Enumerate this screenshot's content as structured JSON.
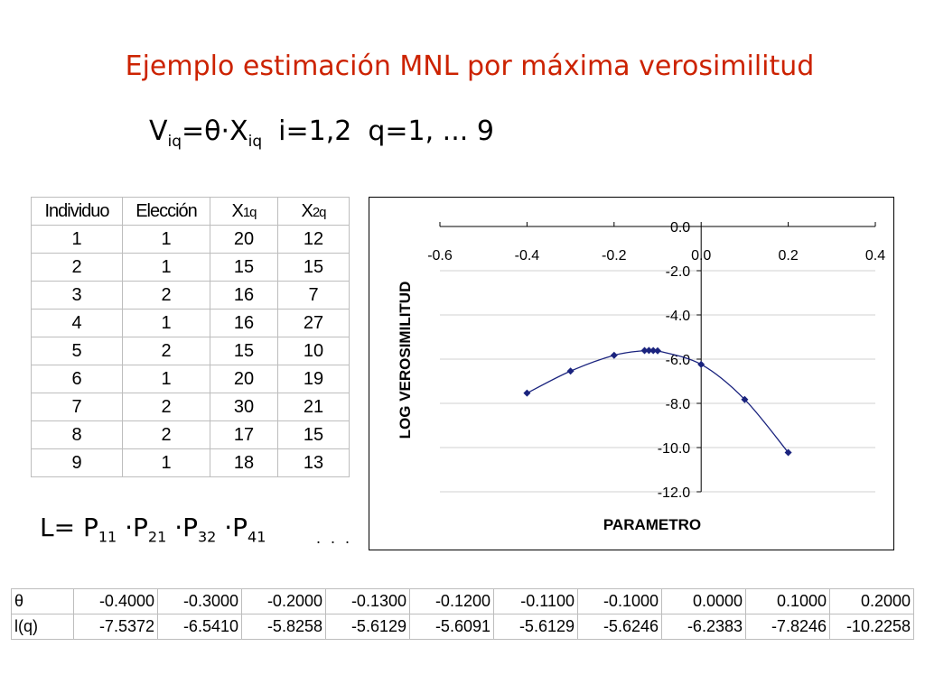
{
  "title": "Ejemplo estimación MNL por máxima verosimilitud",
  "formula": {
    "v": "V",
    "v_sub": "iq",
    "eq": "=θ·X",
    "x_sub": "iq",
    "i_range": "i=1,2",
    "q_range": "q=1, ... 9"
  },
  "table": {
    "headers": [
      "Individuo",
      "Elección",
      "X",
      "X"
    ],
    "header_subs": [
      "1q",
      "2q"
    ],
    "rows": [
      [
        "1",
        "1",
        "20",
        "12"
      ],
      [
        "2",
        "1",
        "15",
        "15"
      ],
      [
        "3",
        "2",
        "16",
        "7"
      ],
      [
        "4",
        "1",
        "16",
        "27"
      ],
      [
        "5",
        "2",
        "15",
        "10"
      ],
      [
        "6",
        "1",
        "20",
        "19"
      ],
      [
        "7",
        "2",
        "30",
        "21"
      ],
      [
        "8",
        "2",
        "17",
        "15"
      ],
      [
        "9",
        "1",
        "18",
        "13"
      ]
    ]
  },
  "likelihood": {
    "prefix": "L=",
    "terms": [
      {
        "p": "P",
        "sub": "11"
      },
      {
        "p": "·P",
        "sub": "21"
      },
      {
        "p": "·P",
        "sub": "32"
      },
      {
        "p": "·P",
        "sub": "41"
      }
    ],
    "ellipsis": ". . ."
  },
  "chart_data": {
    "type": "line",
    "xlabel": "PARAMETRO",
    "ylabel": "LOG VEROSIMILITUD",
    "xlim": [
      -0.6,
      0.4
    ],
    "ylim": [
      -12.0,
      0.0
    ],
    "x_ticks": [
      "-0.6",
      "-0.4",
      "-0.2",
      "0.0",
      "0.2",
      "0.4"
    ],
    "y_ticks": [
      "0.0",
      "-2.0",
      "-4.0",
      "-6.0",
      "-8.0",
      "-10.0",
      "-12.0"
    ],
    "x_tick_values": [
      -0.6,
      -0.4,
      -0.2,
      0.0,
      0.2,
      0.4
    ],
    "y_tick_values": [
      0,
      -2,
      -4,
      -6,
      -8,
      -10,
      -12
    ],
    "grid": true,
    "color": "#1a237e",
    "x": [
      -0.4,
      -0.3,
      -0.2,
      -0.13,
      -0.12,
      -0.11,
      -0.1,
      0.0,
      0.1,
      0.2
    ],
    "y": [
      -7.5372,
      -6.541,
      -5.8258,
      -5.6129,
      -5.6091,
      -5.6129,
      -5.6246,
      -6.2383,
      -7.8246,
      -10.2258
    ]
  },
  "theta_table": {
    "row1": [
      "θ",
      "-0.4000",
      "-0.3000",
      "-0.2000",
      "-0.1300",
      "-0.1200",
      "-0.1100",
      "-0.1000",
      "0.0000",
      "0.1000",
      "0.2000"
    ],
    "row2": [
      "l(q)",
      "-7.5372",
      "-6.5410",
      "-5.8258",
      "-5.6129",
      "-5.6091",
      "-5.6129",
      "-5.6246",
      "-6.2383",
      "-7.8246",
      "-10.2258"
    ]
  }
}
